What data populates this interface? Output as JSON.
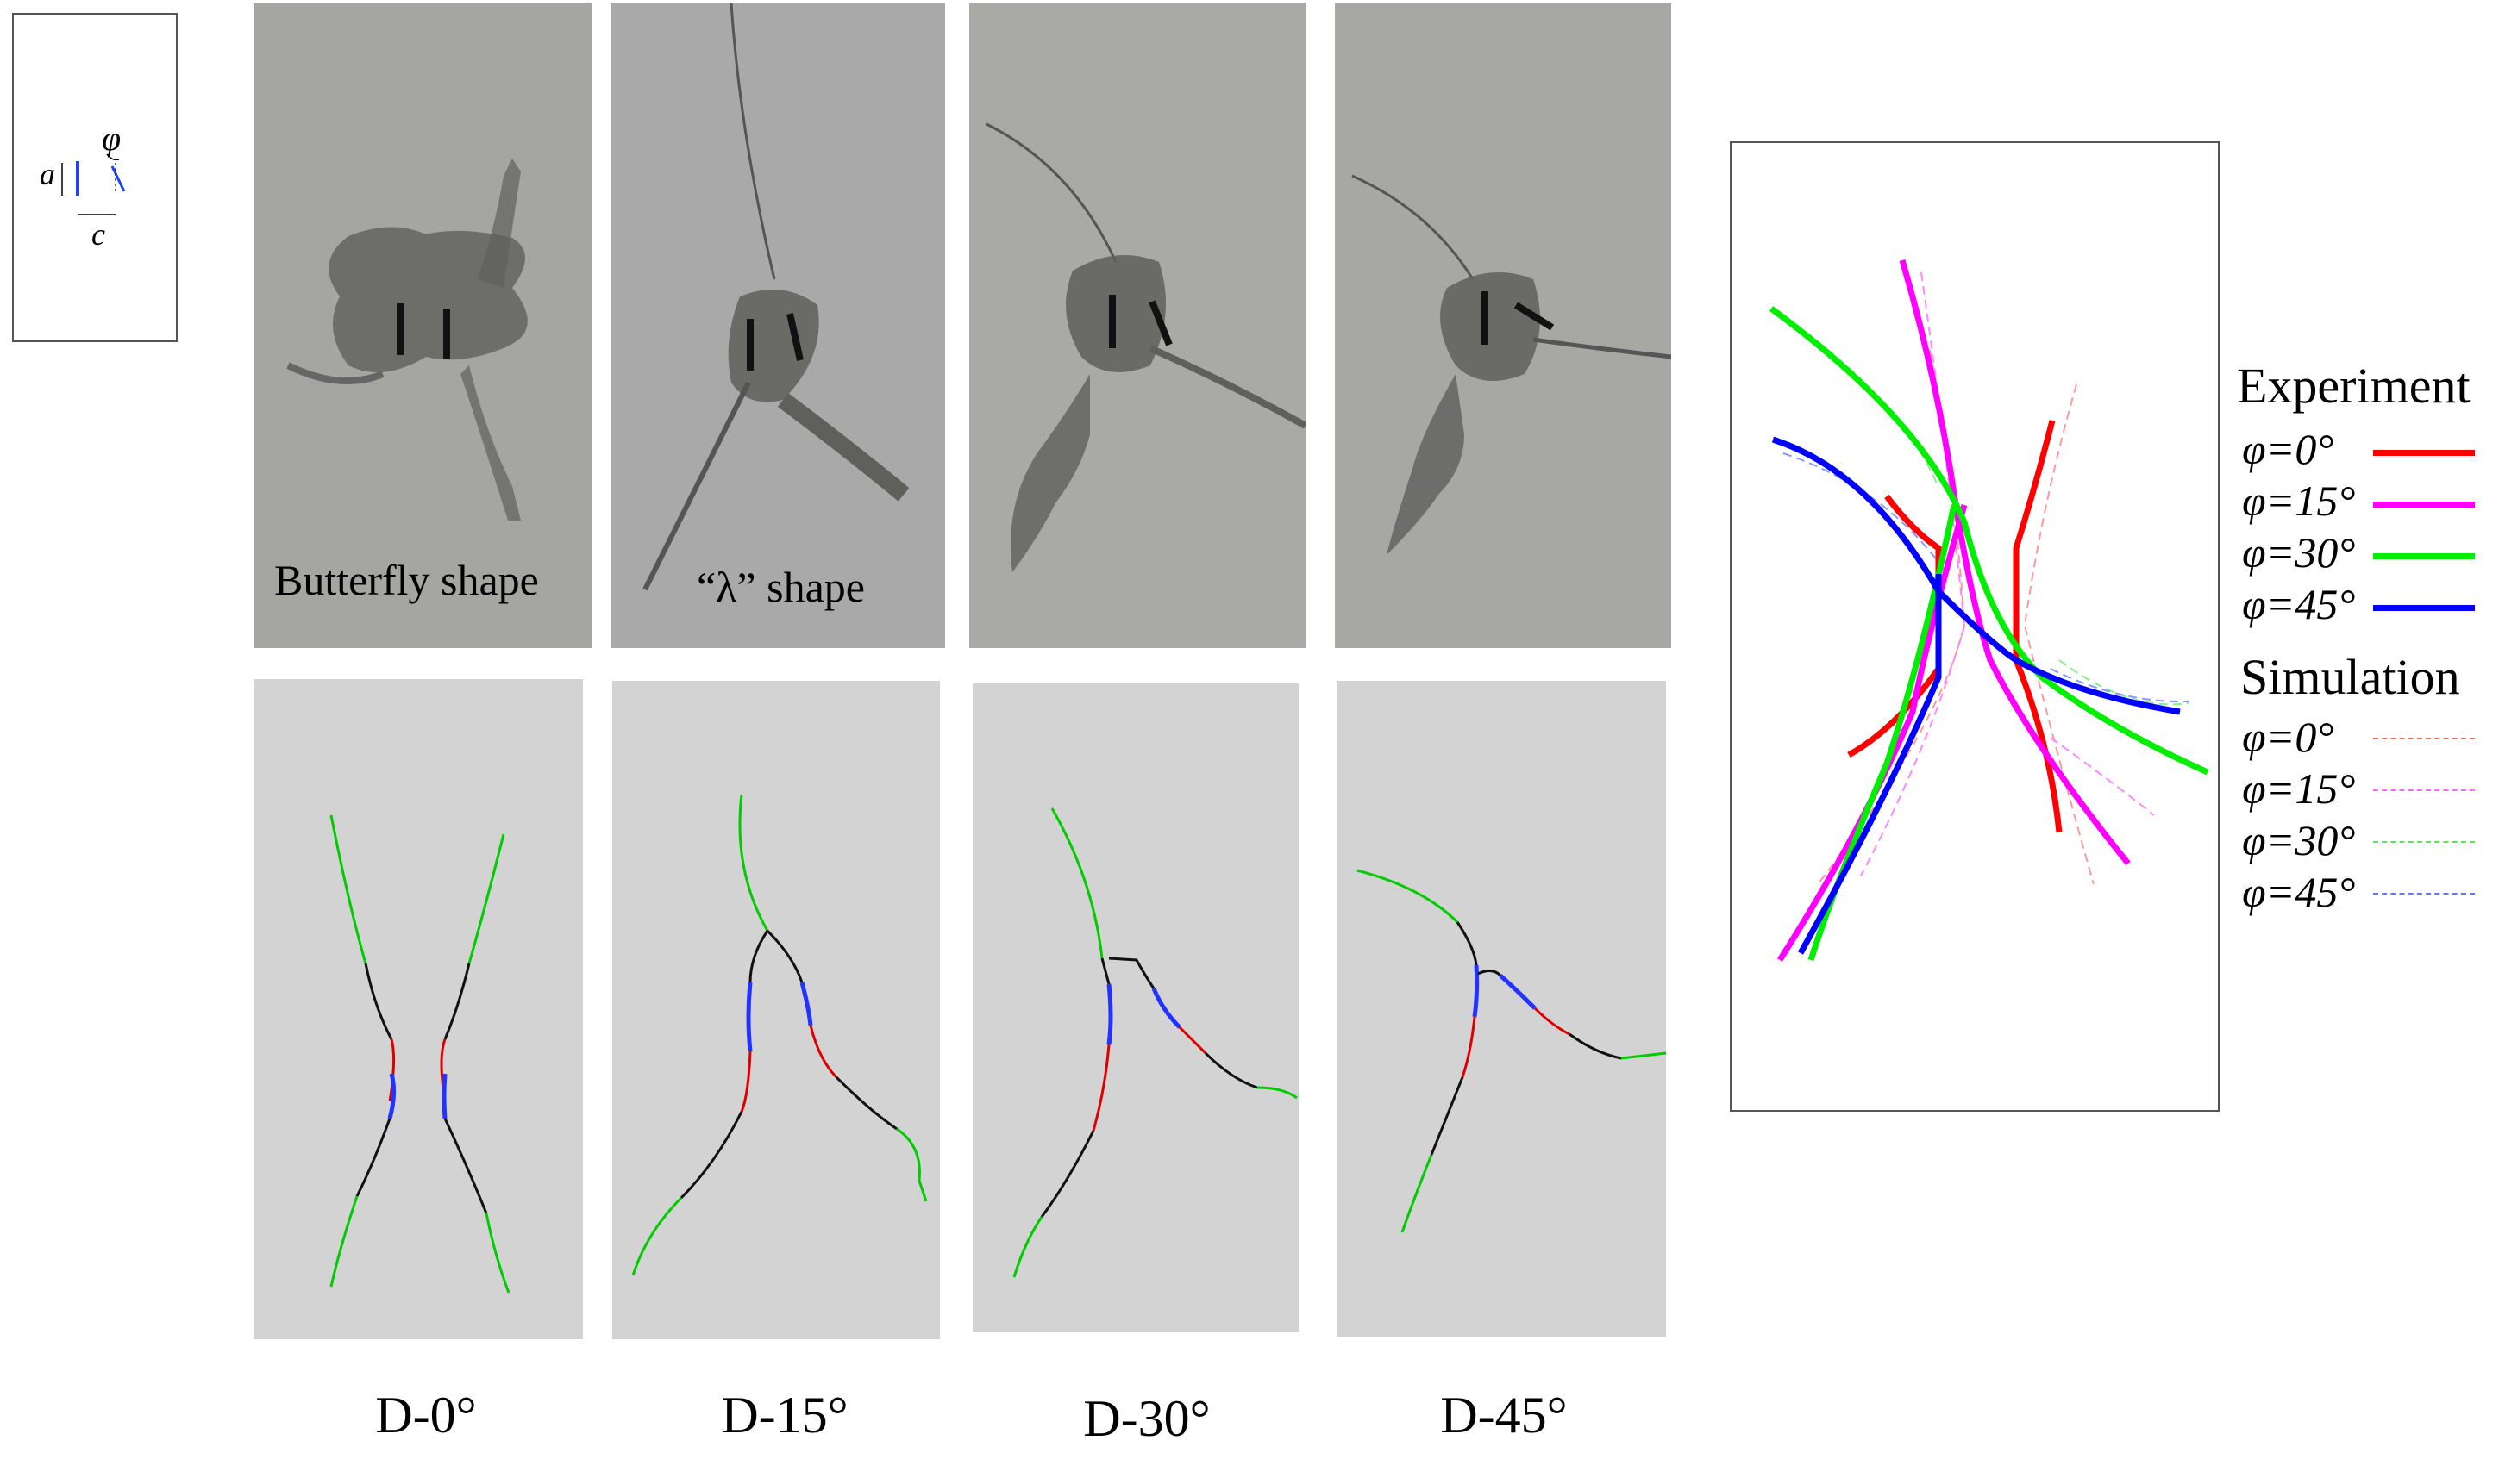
{
  "schematic": {
    "label_a": "a",
    "label_c": "c",
    "label_phi": "φ"
  },
  "photos": [
    {
      "label": "Butterfly shape"
    },
    {
      "label": "“λ” shape"
    },
    {
      "label": ""
    },
    {
      "label": ""
    }
  ],
  "captions": [
    "D-0°",
    "D-15°",
    "D-30°",
    "D-45°"
  ],
  "legend": {
    "experiment_title": "Experiment",
    "simulation_title": "Simulation",
    "entries": [
      {
        "label": "φ=0°",
        "color": "#ff0000"
      },
      {
        "label": "φ=15°",
        "color": "#ff00ff"
      },
      {
        "label": "φ=30°",
        "color": "#00ee00"
      },
      {
        "label": "φ=45°",
        "color": "#0000ff"
      }
    ]
  },
  "colors": {
    "photo_base": "#9a9a96",
    "stain": "#5f5f5c",
    "sim_background": "#d3d3d3",
    "sim_segment_1": "#00cc00",
    "sim_segment_2": "#111111",
    "sim_segment_3": "#dd0000",
    "sim_segment_4": "#2233ff"
  }
}
